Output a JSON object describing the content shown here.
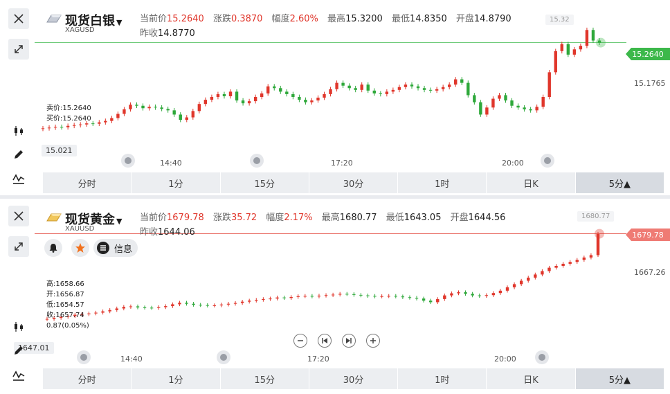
{
  "panels": [
    {
      "title": "现货白银",
      "code": "XAGUSD",
      "stats": {
        "price_label": "当前价",
        "price": "15.2640",
        "change_label": "涨跌",
        "change": "0.3870",
        "pct_label": "幅度",
        "pct": "2.60%",
        "high_label": "最高",
        "high": "15.3200",
        "low_label": "最低",
        "low": "14.8350",
        "open_label": "开盘",
        "open": "14.8790",
        "prev_label": "昨收",
        "prev": "14.8770"
      },
      "price_tag": "15.2640",
      "high_tag": "15.32",
      "axis_label": "15.1765",
      "low_tag": "15.021",
      "bidask": {
        "sell": "卖价:15.2640",
        "buy": "买价:15.2640"
      },
      "times": [
        "14:40",
        "17:20",
        "20:00"
      ],
      "tabs": [
        "分时",
        "1分",
        "15分",
        "30分",
        "1时",
        "日K",
        "5分▲"
      ],
      "active_tab": 6,
      "accent": "#3cb84a",
      "chart_data": {
        "type": "candlestick",
        "y_range": [
          15.0,
          15.33
        ],
        "last": 15.264,
        "closes": [
          15.021,
          15.023,
          15.025,
          15.024,
          15.028,
          15.03,
          15.032,
          15.035,
          15.034,
          15.038,
          15.042,
          15.05,
          15.062,
          15.075,
          15.088,
          15.085,
          15.078,
          15.082,
          15.08,
          15.076,
          15.072,
          15.06,
          15.045,
          15.052,
          15.07,
          15.09,
          15.102,
          15.11,
          15.118,
          15.112,
          15.125,
          15.1,
          15.092,
          15.098,
          15.11,
          15.12,
          15.14,
          15.135,
          15.125,
          15.118,
          15.11,
          15.102,
          15.095,
          15.1,
          15.108,
          15.118,
          15.132,
          15.15,
          15.142,
          15.135,
          15.13,
          15.145,
          15.128,
          15.12,
          15.118,
          15.125,
          15.13,
          15.138,
          15.145,
          15.14,
          15.135,
          15.13,
          15.128,
          15.132,
          15.138,
          15.145,
          15.16,
          15.15,
          15.115,
          15.095,
          15.06,
          15.08,
          15.105,
          15.115,
          15.1,
          15.085,
          15.08,
          15.075,
          15.072,
          15.082,
          15.11,
          15.18,
          15.24,
          15.26,
          15.23,
          15.245,
          15.255,
          15.3,
          15.27,
          15.264
        ],
        "colors": {
          "up": "#e0362b",
          "down": "#2ea83a"
        }
      }
    },
    {
      "title": "现货黄金",
      "code": "XAUUSD",
      "stats": {
        "price_label": "当前价",
        "price": "1679.78",
        "change_label": "涨跌",
        "change": "35.72",
        "pct_label": "幅度",
        "pct": "2.17%",
        "high_label": "最高",
        "high": "1680.77",
        "low_label": "最低",
        "low": "1643.05",
        "open_label": "开盘",
        "open": "1644.56",
        "prev_label": "昨收",
        "prev": "1644.06"
      },
      "price_tag": "1679.78",
      "high_tag": "1680.77",
      "axis_label": "1667.26",
      "low_tag": "1647.01",
      "ohlc": {
        "high": "高:1658.66",
        "open": "开:1656.87",
        "low": "低:1654.57",
        "close": "收:1657.74",
        "chg": "0.87(0.05%)"
      },
      "buttons": {
        "info": "信息"
      },
      "times": [
        "14:40",
        "17:20",
        "20:00"
      ],
      "tabs": [
        "分时",
        "1分",
        "15分",
        "30分",
        "1时",
        "日K",
        "5分▲"
      ],
      "active_tab": 6,
      "accent": "#e0362b",
      "chart_data": {
        "type": "candlestick",
        "y_range": [
          1645.5,
          1681.0
        ],
        "last": 1679.78,
        "closes": [
          1647.2,
          1647.6,
          1648.0,
          1648.3,
          1648.8,
          1649.0,
          1649.3,
          1649.6,
          1650.1,
          1650.6,
          1651.2,
          1651.8,
          1652.0,
          1651.6,
          1651.5,
          1651.4,
          1651.7,
          1652.1,
          1652.8,
          1653.4,
          1653.0,
          1652.6,
          1652.5,
          1652.3,
          1652.4,
          1652.7,
          1653.0,
          1653.3,
          1653.8,
          1654.2,
          1654.5,
          1654.8,
          1655.0,
          1655.4,
          1655.2,
          1655.6,
          1655.9,
          1656.0,
          1655.8,
          1656.1,
          1656.3,
          1656.5,
          1656.8,
          1656.7,
          1656.4,
          1656.2,
          1656.0,
          1655.8,
          1655.9,
          1656.0,
          1655.8,
          1655.5,
          1655.3,
          1655.0,
          1654.2,
          1653.6,
          1654.8,
          1656.2,
          1657.0,
          1657.4,
          1656.8,
          1656.2,
          1656.0,
          1656.3,
          1657.1,
          1658.0,
          1659.3,
          1660.5,
          1661.8,
          1663.0,
          1664.2,
          1665.5,
          1666.8,
          1667.5,
          1668.3,
          1669.0,
          1669.8,
          1670.7,
          1671.6,
          1679.78
        ],
        "colors": {
          "up": "#e0362b",
          "down": "#2ea83a"
        }
      }
    }
  ]
}
